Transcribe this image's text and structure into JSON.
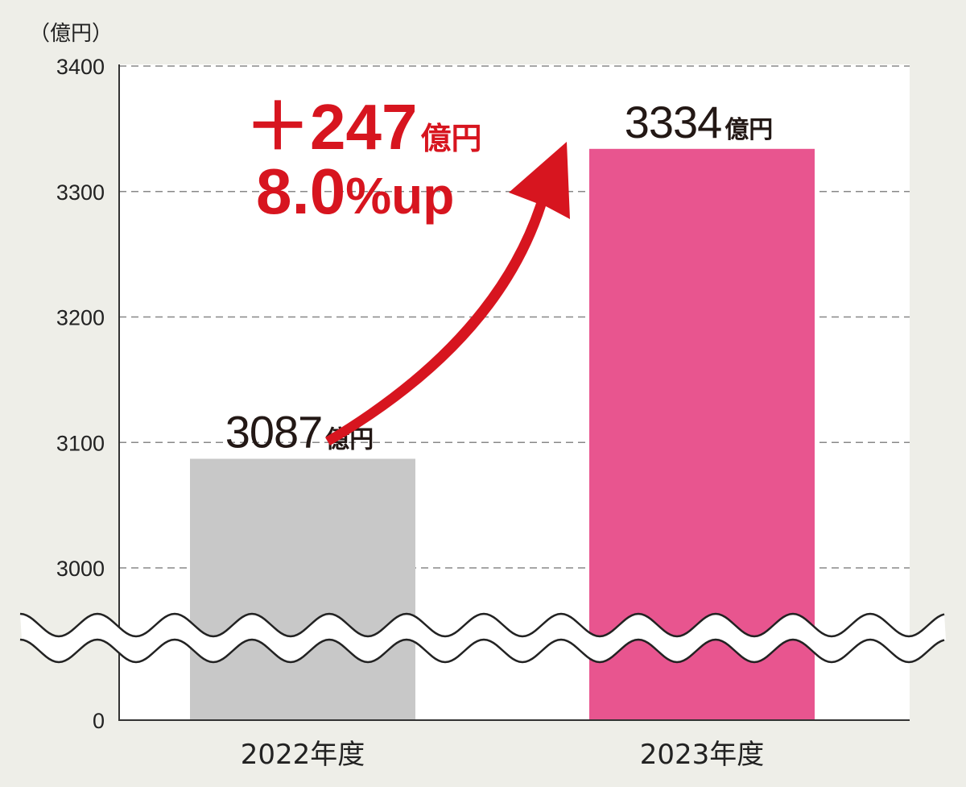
{
  "chart_data": {
    "type": "bar",
    "unit_label": "（億円）",
    "categories": [
      "2022年度",
      "2023年度"
    ],
    "values": [
      3087,
      3334
    ],
    "data_labels": [
      {
        "number": "3087",
        "unit": "億円"
      },
      {
        "number": "3334",
        "unit": "億円"
      }
    ],
    "y_ticks": [
      0,
      3000,
      3100,
      3200,
      3300,
      3400
    ],
    "y_tick_labels": [
      "0",
      "3000",
      "3100",
      "3200",
      "3300",
      "3400"
    ],
    "ylim": [
      3000,
      3400
    ],
    "axis_break": true,
    "grid": true,
    "bar_colors": [
      "#c8c8c8",
      "#e8558f"
    ],
    "annotation": {
      "change_number": "＋247",
      "change_unit": "億円",
      "pct_number": "8.0",
      "pct_unit": "%up",
      "color": "#d7151f"
    }
  }
}
